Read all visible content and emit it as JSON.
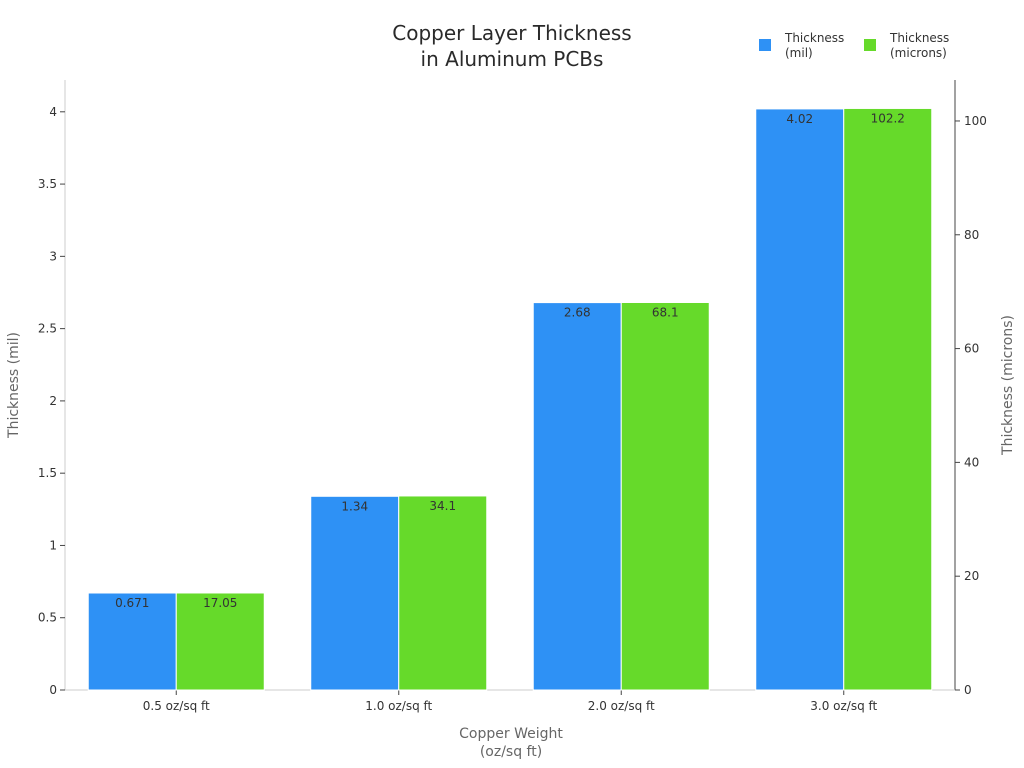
{
  "chart_data": {
    "type": "bar",
    "title": [
      "Copper Layer Thickness",
      "in Aluminum PCBs"
    ],
    "xlabel": [
      "Copper Weight",
      "(oz/sq ft)"
    ],
    "ylabel_left": "Thickness (mil)",
    "ylabel_right": "Thickness (microns)",
    "categories": [
      "0.5 oz/sq ft",
      "1.0 oz/sq ft",
      "2.0 oz/sq ft",
      "3.0 oz/sq ft"
    ],
    "ylim_left": [
      0,
      4.22
    ],
    "ylim_right": [
      0,
      107.2
    ],
    "yticks_left": [
      0,
      0.5,
      1,
      1.5,
      2,
      2.5,
      3,
      3.5,
      4
    ],
    "yticks_left_labels": [
      "0",
      "0.5",
      "1",
      "1.5",
      "2",
      "2.5",
      "3",
      "3.5",
      "4"
    ],
    "yticks_right": [
      0,
      20,
      40,
      60,
      80,
      100
    ],
    "yticks_right_labels": [
      "0",
      "20",
      "40",
      "60",
      "80",
      "100"
    ],
    "legend_position": "top-right",
    "grid": false,
    "series": [
      {
        "name": [
          "Thickness",
          "(mil)"
        ],
        "axis": "left",
        "color": "#2E91F5",
        "values": [
          0.671,
          1.34,
          2.68,
          4.02
        ],
        "labels": [
          "0.671",
          "1.34",
          "2.68",
          "4.02"
        ]
      },
      {
        "name": [
          "Thickness",
          "(microns)"
        ],
        "axis": "right",
        "color": "#66DA2A",
        "values": [
          17.05,
          34.1,
          68.1,
          102.2
        ],
        "labels": [
          "17.05",
          "34.1",
          "68.1",
          "102.2"
        ]
      }
    ]
  }
}
